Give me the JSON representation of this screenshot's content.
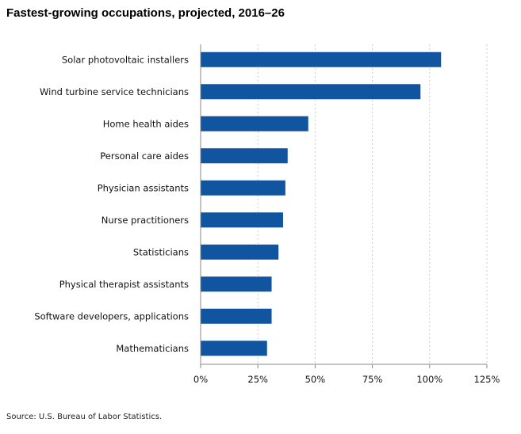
{
  "chart_data": {
    "type": "bar",
    "orientation": "horizontal",
    "title": "Fastest-growing occupations, projected, 2016–26",
    "source": "Source: U.S. Bureau of Labor Statistics.",
    "categories": [
      "Solar photovoltaic installers",
      "Wind turbine service technicians",
      "Home health aides",
      "Personal care aides",
      "Physician assistants",
      "Nurse practitioners",
      "Statisticians",
      "Physical therapist assistants",
      "Software developers, applications",
      "Mathematicians"
    ],
    "values": [
      105,
      96,
      47,
      38,
      37,
      36,
      34,
      31,
      31,
      29
    ],
    "value_unit": "%",
    "xlim": [
      0,
      125
    ],
    "xticks": [
      0,
      25,
      50,
      75,
      100,
      125
    ],
    "xtick_labels": [
      "0%",
      "25%",
      "50%",
      "75%",
      "100%",
      "125%"
    ],
    "grid": "vertical dotted",
    "bar_color": "#1155A0",
    "grid_color": "#CCCCCC",
    "axis_color": "#888888"
  }
}
